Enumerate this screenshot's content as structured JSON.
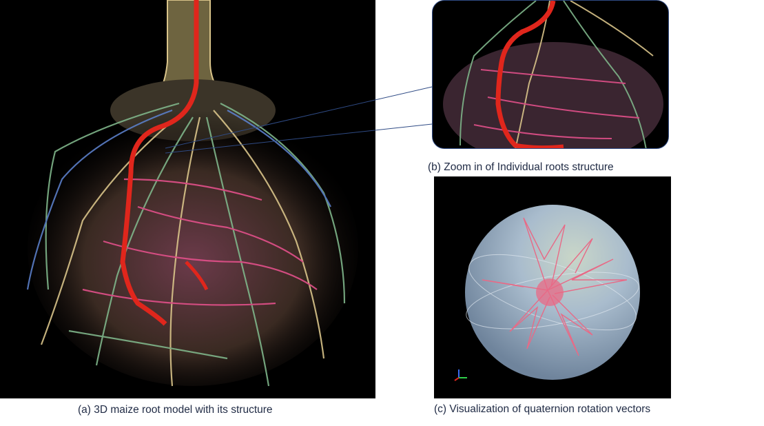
{
  "captions": {
    "a": "(a) 3D maize root model with its structure",
    "b": "(b) Zoom in  of Individual roots structure",
    "c": "(c) Visualization of quaternion rotation vectors"
  },
  "colors": {
    "background": "#000000",
    "main_root_highlight": "#e0261c",
    "root_green": "#7fb58a",
    "root_pink": "#e2508a",
    "root_cream": "#d9c48a",
    "root_blue": "#5b7fc9",
    "sphere": "#9fb3c8",
    "connector": "#2f4b85"
  }
}
